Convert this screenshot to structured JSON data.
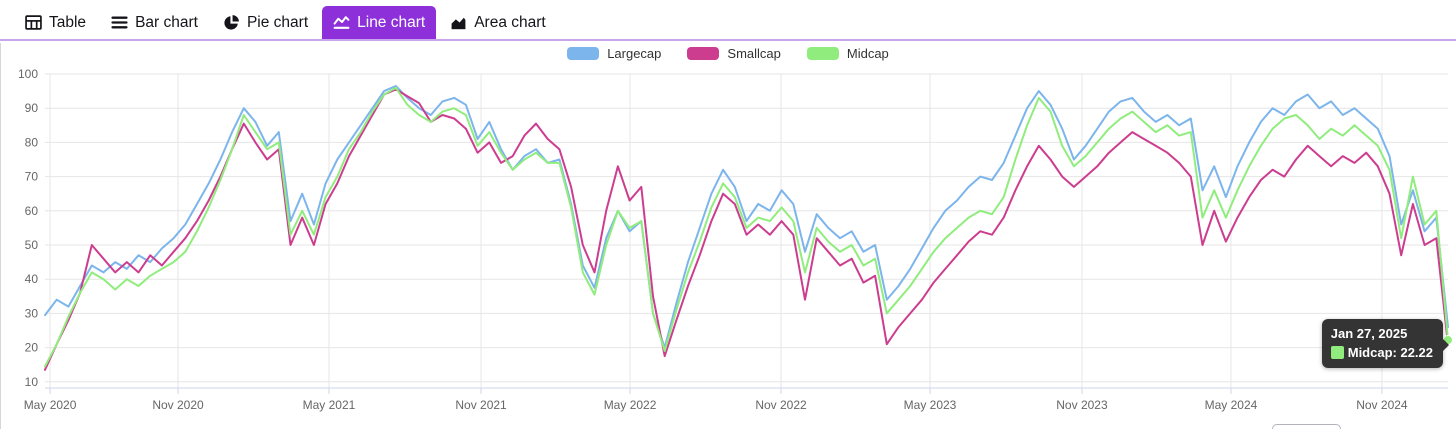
{
  "colors": {
    "accent": "#8e30da",
    "tab_border": "#c9a5ee",
    "grid": "#e6e6e6",
    "axis_line": "#ccd6eb",
    "axis_label": "#666666",
    "legend_text": "#333333"
  },
  "tabs": [
    {
      "label": "Table",
      "icon": "table-icon",
      "active": false
    },
    {
      "label": "Bar chart",
      "icon": "bar-chart-icon",
      "active": false
    },
    {
      "label": "Pie chart",
      "icon": "pie-chart-icon",
      "active": false
    },
    {
      "label": "Line chart",
      "icon": "line-chart-icon",
      "active": true
    },
    {
      "label": "Area chart",
      "icon": "area-chart-icon",
      "active": false
    }
  ],
  "chart_data": {
    "type": "line",
    "title": "",
    "xlabel": "",
    "ylabel": "",
    "x_range": [
      "May 2020",
      "Jan 27, 2025"
    ],
    "x_axis": {
      "ticks": [
        "May 2020",
        "Nov 2020",
        "May 2021",
        "Nov 2021",
        "May 2022",
        "Nov 2022",
        "May 2023",
        "Nov 2023",
        "May 2024",
        "Nov 2024"
      ],
      "tick_pos": [
        0.0036,
        0.0948,
        0.2024,
        0.3108,
        0.417,
        0.5246,
        0.6308,
        0.7391,
        0.8453,
        0.9529
      ]
    },
    "y_axis": {
      "min": 10,
      "max": 100,
      "step": 10,
      "tick_labels": [
        "10",
        "20",
        "30",
        "40",
        "50",
        "60",
        "70",
        "80",
        "90",
        "100"
      ]
    },
    "grid": true,
    "legend_position": "top-center",
    "series": [
      {
        "name": "Largecap",
        "color": "#7cb5ec",
        "values": [
          29.5,
          34,
          32,
          38,
          44,
          42,
          45,
          43,
          47,
          45,
          49,
          52,
          56,
          62,
          68,
          75,
          83,
          90,
          86,
          79,
          83,
          57,
          65,
          56,
          68,
          75,
          80,
          85,
          90,
          95,
          96.5,
          93,
          90,
          88,
          92,
          93,
          91,
          81,
          86,
          78,
          72,
          76,
          78,
          74,
          75,
          62,
          44,
          37.5,
          52,
          60,
          54,
          57,
          30,
          20,
          33,
          45,
          55,
          65,
          72,
          67,
          57,
          62,
          60,
          66,
          62,
          48,
          59,
          55,
          52,
          54,
          48,
          50,
          34,
          38,
          43,
          49,
          55,
          60,
          63,
          67,
          70,
          69,
          74,
          82,
          90,
          95,
          91,
          84,
          75,
          79,
          84,
          89,
          92,
          93,
          89,
          86,
          88,
          85,
          87,
          66,
          73,
          64,
          73,
          80,
          86,
          90,
          88,
          92,
          94,
          90,
          92,
          88,
          90,
          87,
          84,
          76,
          56,
          66,
          54,
          58,
          26
        ]
      },
      {
        "name": "Smallcap",
        "color": "#cc3d8f",
        "values": [
          13.5,
          21,
          28,
          36,
          50,
          46,
          42,
          45,
          42,
          47,
          44,
          48,
          52,
          57,
          63,
          70,
          78,
          85.5,
          80,
          75,
          78,
          50,
          58,
          50,
          62,
          68,
          76,
          82,
          88,
          94,
          95.5,
          93.5,
          91.5,
          86,
          88,
          87,
          84,
          77,
          80,
          74,
          76,
          82,
          85.5,
          81,
          78,
          67,
          50,
          42,
          60,
          73,
          63,
          67,
          35,
          17.5,
          28,
          38,
          47,
          57,
          65,
          62,
          53,
          56,
          53,
          57,
          53,
          34,
          52,
          48,
          44,
          46,
          39,
          41,
          21,
          26,
          30,
          34,
          39,
          43,
          47,
          51,
          54,
          53,
          58,
          66,
          73,
          79,
          75,
          70,
          67,
          70,
          73,
          77,
          80,
          83,
          81,
          79,
          77,
          74,
          70,
          50,
          60,
          51,
          58,
          64,
          69,
          72,
          70,
          75,
          79,
          76,
          73,
          76,
          74,
          77,
          73,
          65,
          47,
          62,
          50,
          52,
          21
        ]
      },
      {
        "name": "Midcap",
        "color": "#90ed7d",
        "values": [
          14.5,
          21,
          29,
          36,
          42,
          40,
          37,
          40,
          38,
          41,
          43,
          45,
          48,
          54,
          61,
          69,
          78,
          88,
          83,
          78,
          80,
          53,
          60,
          53,
          64,
          70,
          78,
          83,
          89,
          94,
          96,
          91,
          88,
          86,
          89,
          90,
          88,
          79,
          83,
          77,
          72,
          75,
          77,
          74,
          74,
          61,
          42,
          35.5,
          50,
          60,
          55,
          57,
          30,
          19,
          31,
          42,
          51,
          61,
          68,
          64,
          55,
          58,
          57,
          61,
          57,
          42,
          55,
          51,
          48,
          50,
          44,
          46,
          30,
          34,
          38,
          43,
          48,
          52,
          55,
          58,
          60,
          59,
          64,
          75,
          85,
          93,
          89,
          79,
          73,
          76,
          80,
          84,
          87,
          89,
          86,
          83,
          85,
          82,
          83,
          58,
          66,
          58,
          66,
          73,
          79,
          84,
          87,
          88,
          85,
          81,
          84,
          82,
          85,
          82,
          79,
          72,
          52,
          70,
          56,
          60,
          22.22
        ]
      }
    ],
    "highlighted_point": {
      "series": "Midcap",
      "x_label": "Jan 27, 2025",
      "value": 22.22
    }
  },
  "tooltip": {
    "date": "Jan 27, 2025",
    "series": "Midcap",
    "value": "22.22",
    "row_text": "Midcap: 22.22",
    "swatch_color": "#90ed7d"
  }
}
